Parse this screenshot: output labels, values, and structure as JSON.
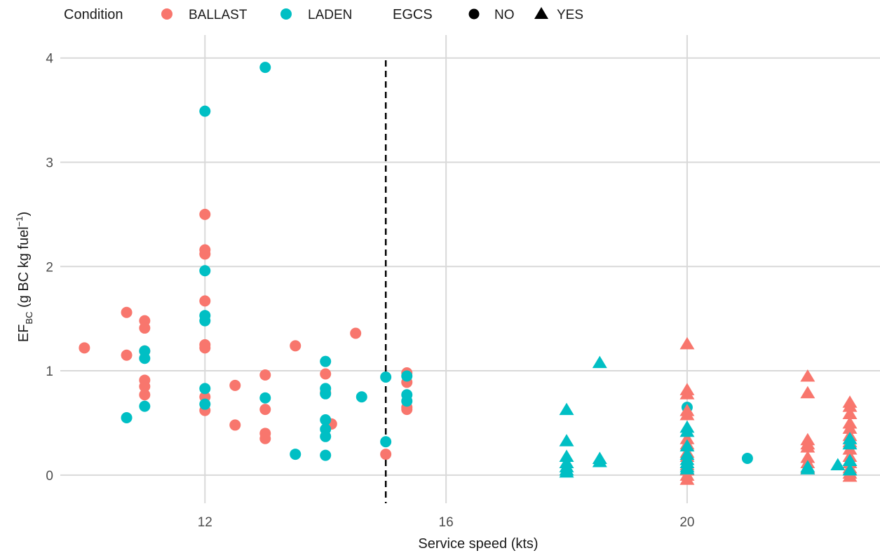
{
  "chart_data": {
    "type": "scatter",
    "title": "",
    "xlabel": "Service speed (kts)",
    "ylabel_main": "EF",
    "ylabel_sub": "BC",
    "ylabel_rest": " (g BC kg fuel",
    "ylabel_sup": "−1",
    "ylabel_end": ")",
    "xlim": [
      9.6,
      23.2
    ],
    "ylim": [
      -0.27,
      4.22
    ],
    "x_ticks": [
      12,
      16,
      20
    ],
    "y_ticks": [
      0,
      1,
      2,
      3,
      4
    ],
    "reference_line": {
      "x": 15,
      "style": "dashed"
    },
    "grid": true,
    "legend": {
      "position": "top",
      "condition_title": "Condition",
      "condition_entries": [
        {
          "label": "BALLAST",
          "color": "#F8766D"
        },
        {
          "label": "LADEN",
          "color": "#00BFC4"
        }
      ],
      "egcs_title": "EGCS",
      "egcs_entries": [
        {
          "label": "NO",
          "shape": "circle"
        },
        {
          "label": "YES",
          "shape": "triangle"
        }
      ]
    },
    "series": [
      {
        "condition": "BALLAST",
        "egcs": "NO",
        "points": [
          [
            10,
            1.22
          ],
          [
            10.7,
            1.56
          ],
          [
            10.7,
            1.15
          ],
          [
            11,
            1.48
          ],
          [
            11,
            1.41
          ],
          [
            11,
            1.19
          ],
          [
            11,
            0.91
          ],
          [
            11,
            0.85
          ],
          [
            11,
            0.77
          ],
          [
            12,
            2.5
          ],
          [
            12,
            2.16
          ],
          [
            12,
            2.12
          ],
          [
            12,
            1.67
          ],
          [
            12,
            1.25
          ],
          [
            12,
            1.22
          ],
          [
            12,
            0.75
          ],
          [
            12,
            0.62
          ],
          [
            12.5,
            0.86
          ],
          [
            12.5,
            0.48
          ],
          [
            13,
            0.96
          ],
          [
            13,
            0.63
          ],
          [
            13,
            0.4
          ],
          [
            13,
            0.35
          ],
          [
            13.5,
            1.24
          ],
          [
            14,
            0.97
          ],
          [
            14,
            0.79
          ],
          [
            14.1,
            0.49
          ],
          [
            14.5,
            1.36
          ],
          [
            15,
            0.2
          ],
          [
            15.35,
            0.98
          ],
          [
            15.35,
            0.89
          ],
          [
            15.35,
            0.65
          ],
          [
            15.35,
            0.63
          ]
        ]
      },
      {
        "condition": "LADEN",
        "egcs": "NO",
        "points": [
          [
            10.7,
            0.55
          ],
          [
            11,
            1.19
          ],
          [
            11,
            1.12
          ],
          [
            11,
            0.66
          ],
          [
            12,
            3.49
          ],
          [
            12,
            1.96
          ],
          [
            12,
            1.53
          ],
          [
            12,
            1.48
          ],
          [
            12,
            0.83
          ],
          [
            12,
            0.68
          ],
          [
            13,
            3.91
          ],
          [
            13,
            0.74
          ],
          [
            13.5,
            0.2
          ],
          [
            14,
            1.09
          ],
          [
            14,
            0.83
          ],
          [
            14,
            0.78
          ],
          [
            14,
            0.53
          ],
          [
            14,
            0.44
          ],
          [
            14,
            0.37
          ],
          [
            14,
            0.19
          ],
          [
            14.6,
            0.75
          ],
          [
            15,
            0.94
          ],
          [
            15,
            0.32
          ],
          [
            15.35,
            0.95
          ],
          [
            15.35,
            0.77
          ],
          [
            15.35,
            0.71
          ],
          [
            20,
            0.65
          ],
          [
            21,
            0.16
          ]
        ]
      },
      {
        "condition": "BALLAST",
        "egcs": "YES",
        "points": [
          [
            20,
            1.26
          ],
          [
            20,
            0.82
          ],
          [
            20,
            0.78
          ],
          [
            20,
            0.62
          ],
          [
            20,
            0.58
          ],
          [
            20,
            0.35
          ],
          [
            20,
            0.3
          ],
          [
            20,
            0.22
          ],
          [
            20,
            0.18
          ],
          [
            20,
            0.1
          ],
          [
            20,
            0.05
          ],
          [
            20,
            0.0
          ],
          [
            20,
            -0.04
          ],
          [
            22,
            0.95
          ],
          [
            22,
            0.79
          ],
          [
            22,
            0.34
          ],
          [
            22,
            0.3
          ],
          [
            22,
            0.27
          ],
          [
            22,
            0.17
          ],
          [
            22,
            0.12
          ],
          [
            22,
            0.07
          ],
          [
            22.7,
            0.7
          ],
          [
            22.7,
            0.66
          ],
          [
            22.7,
            0.59
          ],
          [
            22.7,
            0.5
          ],
          [
            22.7,
            0.45
          ],
          [
            22.7,
            0.38
          ],
          [
            22.7,
            0.32
          ],
          [
            22.7,
            0.25
          ],
          [
            22.7,
            0.18
          ],
          [
            22.7,
            0.12
          ],
          [
            22.7,
            0.07
          ],
          [
            22.7,
            0.02
          ],
          [
            22.7,
            -0.01
          ]
        ]
      },
      {
        "condition": "LADEN",
        "egcs": "YES",
        "points": [
          [
            18,
            0.63
          ],
          [
            18,
            0.33
          ],
          [
            18,
            0.18
          ],
          [
            18,
            0.12
          ],
          [
            18,
            0.08
          ],
          [
            18,
            0.05
          ],
          [
            18,
            0.03
          ],
          [
            18.55,
            1.08
          ],
          [
            18.55,
            0.16
          ],
          [
            18.55,
            0.13
          ],
          [
            20,
            0.46
          ],
          [
            20,
            0.42
          ],
          [
            20,
            0.28
          ],
          [
            20,
            0.2
          ],
          [
            20,
            0.15
          ],
          [
            20,
            0.12
          ],
          [
            20,
            0.08
          ],
          [
            20,
            0.06
          ],
          [
            22,
            0.08
          ],
          [
            22,
            0.06
          ],
          [
            22.5,
            0.1
          ],
          [
            22.7,
            0.35
          ],
          [
            22.7,
            0.3
          ],
          [
            22.7,
            0.14
          ],
          [
            22.7,
            0.05
          ]
        ]
      }
    ]
  }
}
